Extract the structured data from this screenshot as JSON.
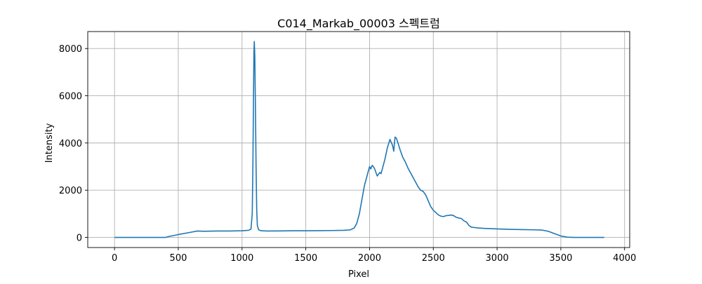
{
  "chart_data": {
    "type": "line",
    "title": "C014_Markab_00003 스펙트럼",
    "xlabel": "Pixel",
    "ylabel": "Intensity",
    "xlim": [
      -210,
      4040
    ],
    "ylim": [
      -430,
      8720
    ],
    "xticks": [
      0,
      500,
      1000,
      1500,
      2000,
      2500,
      3000,
      3500,
      4000
    ],
    "yticks": [
      0,
      2000,
      4000,
      6000,
      8000
    ],
    "grid": true,
    "line_color": "#1f77b4",
    "series": [
      {
        "name": "",
        "x": [
          0,
          400,
          420,
          500,
          600,
          650,
          700,
          800,
          900,
          1000,
          1050,
          1070,
          1080,
          1085,
          1090,
          1093,
          1096,
          1100,
          1105,
          1110,
          1115,
          1120,
          1130,
          1150,
          1200,
          1300,
          1400,
          1500,
          1600,
          1700,
          1800,
          1850,
          1880,
          1900,
          1920,
          1940,
          1960,
          1975,
          1990,
          2000,
          2010,
          2020,
          2030,
          2040,
          2060,
          2080,
          2090,
          2100,
          2120,
          2140,
          2160,
          2180,
          2190,
          2195,
          2200,
          2210,
          2220,
          2240,
          2260,
          2280,
          2300,
          2320,
          2340,
          2360,
          2380,
          2400,
          2420,
          2440,
          2460,
          2480,
          2500,
          2520,
          2540,
          2560,
          2580,
          2600,
          2620,
          2640,
          2660,
          2680,
          2700,
          2720,
          2740,
          2760,
          2780,
          2800,
          2820,
          2850,
          2900,
          2950,
          3000,
          3100,
          3200,
          3300,
          3350,
          3400,
          3450,
          3500,
          3550,
          3600,
          3700,
          3840
        ],
        "y": [
          0,
          0,
          30,
          120,
          220,
          270,
          260,
          270,
          270,
          280,
          300,
          350,
          1000,
          3000,
          6000,
          7800,
          8300,
          7700,
          5500,
          3000,
          1200,
          500,
          320,
          280,
          270,
          275,
          280,
          280,
          285,
          290,
          300,
          320,
          400,
          600,
          1000,
          1600,
          2200,
          2500,
          2800,
          3000,
          2900,
          3050,
          3000,
          2900,
          2600,
          2750,
          2700,
          2900,
          3300,
          3800,
          4150,
          3900,
          3650,
          4000,
          4250,
          4200,
          4050,
          3700,
          3400,
          3200,
          2950,
          2750,
          2550,
          2350,
          2150,
          2000,
          1950,
          1800,
          1550,
          1300,
          1150,
          1050,
          950,
          900,
          880,
          920,
          930,
          950,
          920,
          850,
          820,
          800,
          700,
          650,
          500,
          430,
          420,
          400,
          380,
          370,
          360,
          340,
          330,
          320,
          310,
          260,
          160,
          60,
          10,
          0,
          0,
          0
        ]
      }
    ]
  }
}
